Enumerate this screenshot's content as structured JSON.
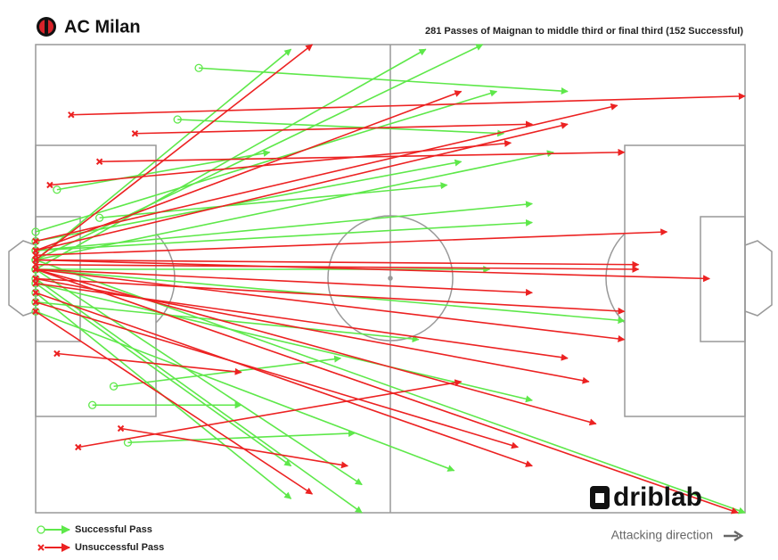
{
  "header": {
    "team": "AC Milan"
  },
  "chart_data": {
    "type": "pass-map",
    "title": "281 Passes of Maignan to middle third or final third (152 Successful)",
    "xlim": [
      0,
      100
    ],
    "ylim": [
      0,
      100
    ],
    "series": [
      {
        "name": "Successful Pass",
        "color": "#5ee84a",
        "marker": "circle",
        "passes": [
          [
            23,
            5,
            75,
            10
          ],
          [
            20,
            16,
            66,
            19
          ],
          [
            0,
            46,
            63,
            0
          ],
          [
            0,
            46,
            36,
            1
          ],
          [
            0,
            48,
            55,
            1
          ],
          [
            0,
            44,
            70,
            34
          ],
          [
            0,
            48,
            64,
            48
          ],
          [
            0,
            50,
            46,
            100
          ],
          [
            0,
            51,
            70,
            76
          ],
          [
            13,
            85,
            45,
            83
          ],
          [
            8,
            77,
            29,
            77
          ],
          [
            0,
            46,
            100,
            100
          ],
          [
            0,
            53,
            36,
            97
          ],
          [
            3,
            31,
            33,
            23
          ],
          [
            0,
            42,
            60,
            25
          ],
          [
            0,
            57,
            59,
            91
          ],
          [
            0,
            48,
            83,
            59
          ],
          [
            0,
            40,
            65,
            10
          ],
          [
            11,
            73,
            43,
            67
          ],
          [
            0,
            55,
            54,
            63
          ],
          [
            0,
            46,
            73,
            23
          ],
          [
            0,
            51,
            36,
            90
          ],
          [
            0,
            44,
            70,
            38
          ],
          [
            9,
            37,
            58,
            30
          ],
          [
            0,
            48,
            46,
            94
          ]
        ]
      },
      {
        "name": "Unsuccessful Pass",
        "color": "#ec2222",
        "marker": "cross",
        "passes": [
          [
            5,
            15,
            100,
            11
          ],
          [
            0,
            46,
            95,
            50
          ],
          [
            0,
            47,
            85,
            48
          ],
          [
            0,
            45,
            89,
            40
          ],
          [
            0,
            48,
            99,
            100
          ],
          [
            2,
            30,
            67,
            21
          ],
          [
            0,
            46,
            39,
            0
          ],
          [
            0,
            44,
            75,
            17
          ],
          [
            0,
            50,
            78,
            72
          ],
          [
            6,
            86,
            60,
            72
          ],
          [
            12,
            82,
            44,
            90
          ],
          [
            0,
            48,
            83,
            63
          ],
          [
            0,
            53,
            70,
            90
          ],
          [
            0,
            42,
            82,
            13
          ],
          [
            3,
            66,
            29,
            70
          ],
          [
            0,
            51,
            75,
            67
          ],
          [
            0,
            46,
            85,
            47
          ],
          [
            0,
            57,
            39,
            96
          ],
          [
            14,
            19,
            70,
            17
          ],
          [
            0,
            48,
            79,
            81
          ],
          [
            0,
            44,
            60,
            10
          ],
          [
            0,
            48,
            70,
            53
          ],
          [
            0,
            50,
            83,
            57
          ],
          [
            9,
            25,
            83,
            23
          ],
          [
            0,
            55,
            68,
            86
          ]
        ]
      }
    ]
  },
  "brand": "driblab",
  "direction_label": "Attacking direction"
}
